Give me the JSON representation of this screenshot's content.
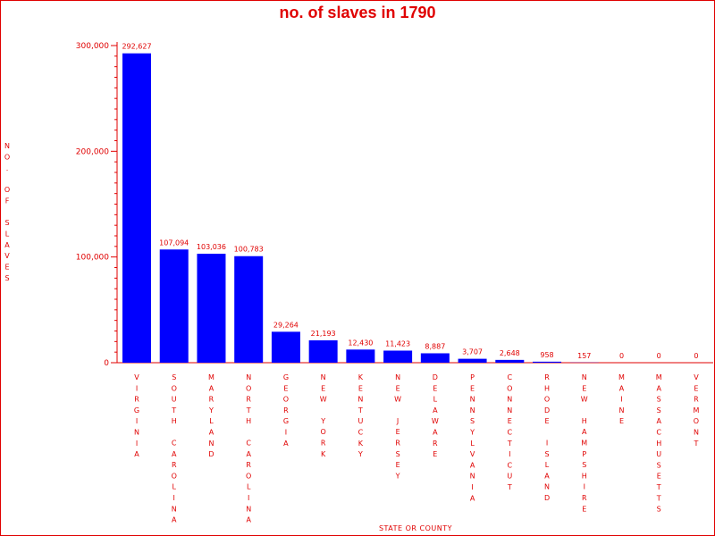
{
  "colors": {
    "bar": "#0000ff",
    "text": "#e00000",
    "axis": "#e00000",
    "background": "#ffffff"
  },
  "chart_data": {
    "type": "bar",
    "title": "no. of slaves in 1790",
    "xlabel": "STATE OR COUNTY",
    "ylabel": "NO. OF SLAVES",
    "ylim": [
      0,
      300000
    ],
    "yticks": [
      0,
      100000,
      200000,
      300000
    ],
    "ytick_labels": [
      "0",
      "100,000",
      "200,000",
      "300,000"
    ],
    "grid": false,
    "legend": "none",
    "categories": [
      "VIRGINIA",
      "SOUTH CAROLINA",
      "MARYLAND",
      "NORTH CAROLINA",
      "GEORGIA",
      "NEW YORK",
      "KENTUCKY",
      "NEW JERSEY",
      "DELAWARE",
      "PENNSYLVANIA",
      "CONNECTICUT",
      "RHODE ISLAND",
      "NEW HAMPSHIRE",
      "MAINE",
      "MASSACHUSETTS",
      "VERMONT"
    ],
    "values": [
      292627,
      107094,
      103036,
      100783,
      29264,
      21193,
      12430,
      11423,
      8887,
      3707,
      2648,
      958,
      157,
      0,
      0,
      0
    ],
    "value_labels": [
      "292,627",
      "107,094",
      "103,036",
      "100,783",
      "29,264",
      "21,193",
      "12,430",
      "11,423",
      "8,887",
      "3,707",
      "2,648",
      "958",
      "157",
      "0",
      "0",
      "0"
    ]
  }
}
